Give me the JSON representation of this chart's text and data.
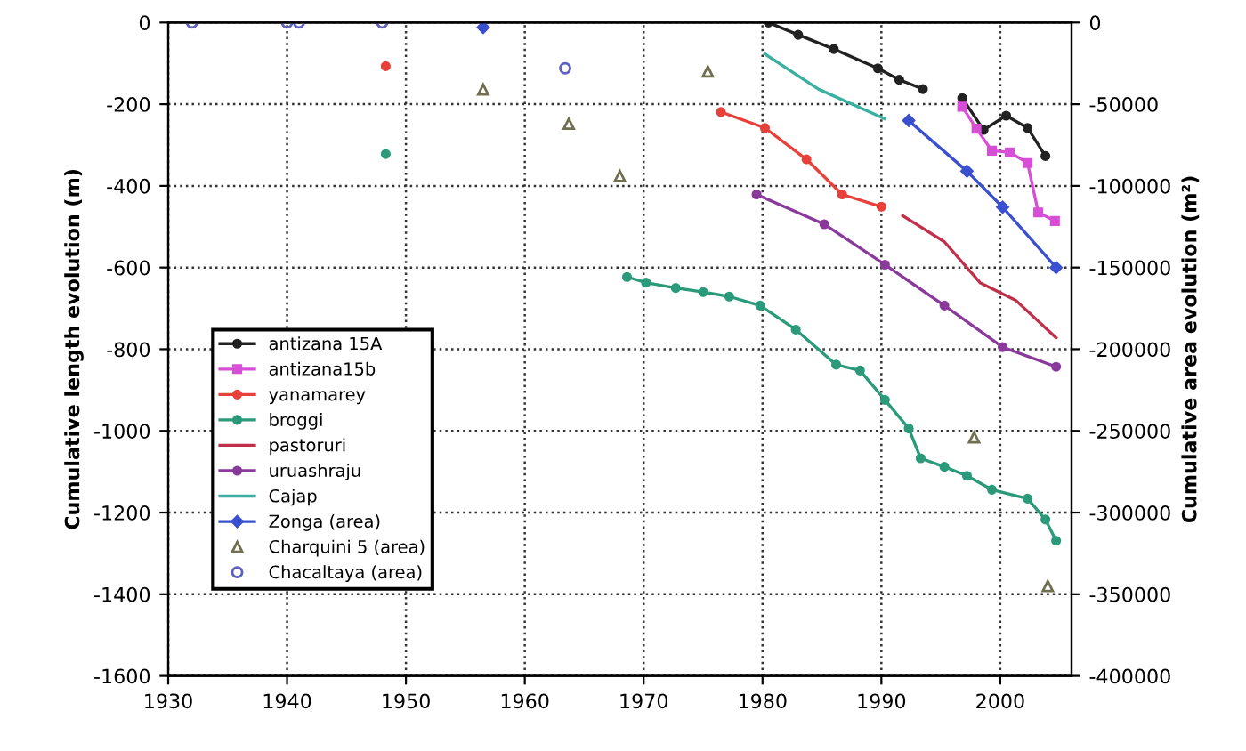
{
  "chart_data": {
    "type": "line",
    "xlabel": null,
    "ylabel": "Cumulative length evolution (m)",
    "y2label": "Cumulative area evolution (m²)",
    "xlim": [
      1930,
      2006
    ],
    "xticks": [
      1930,
      1940,
      1950,
      1960,
      1970,
      1980,
      1990,
      2000
    ],
    "ylim": [
      -1600,
      0
    ],
    "yticks": [
      -1600,
      -1400,
      -1200,
      -1000,
      -800,
      -600,
      -400,
      -200,
      0
    ],
    "y2lim": [
      -400000,
      0
    ],
    "y2ticks": [
      -400000,
      -350000,
      -300000,
      -250000,
      -200000,
      -150000,
      -100000,
      -50000,
      0
    ],
    "grid": true,
    "legend": "bottom left",
    "line_style": "solid",
    "series": [
      {
        "name": "antizana 15A",
        "color": "#222222",
        "marker": "circle",
        "x": [
          1980.5,
          1983,
          1986,
          1989.7,
          1991.5,
          1993.5,
          1995,
          1996.8,
          1998.6,
          2000.5,
          2002.3,
          2003.8
        ],
        "values": [
          0,
          -30,
          -65,
          -112,
          -140,
          -163,
          null,
          -185,
          -263,
          -228,
          -258,
          -327
        ]
      },
      {
        "name": "antizana15b",
        "color": "#d64fd6",
        "marker": "square",
        "x": [
          1996.8,
          1998,
          1999.3,
          2000.8,
          2002.3,
          2003.2,
          2004.6
        ],
        "values": [
          -206,
          -260,
          -314,
          -318,
          -344,
          -465,
          -486
        ]
      },
      {
        "name": "yanamarey",
        "color": "#e8403a",
        "marker": "circle",
        "x": [
          1948.3,
          1960,
          1976.5,
          1980.2,
          1983.7,
          1986.7,
          1990
        ],
        "values": [
          -107,
          null,
          -219,
          -258,
          -335,
          -421,
          -451
        ]
      },
      {
        "name": "broggi",
        "color": "#2a9a7a",
        "marker": "circle",
        "x": [
          1948.3,
          1960,
          1968.6,
          1970.2,
          1972.7,
          1975,
          1977.2,
          1979.8,
          1982.8,
          1986.2,
          1988.2,
          1990.3,
          1992.3,
          1993.3,
          1995.3,
          1997.2,
          1999.3,
          2002.3,
          2003.8,
          2004.7
        ],
        "values": [
          -322,
          null,
          -623,
          -637,
          -650,
          -660,
          -671,
          -693,
          -752,
          -838,
          -852,
          -924,
          -994,
          -1067,
          -1088,
          -1110,
          -1144,
          -1166,
          -1217,
          -1269
        ]
      },
      {
        "name": "pastoruri",
        "color": "#c0304a",
        "marker": "none",
        "x": [
          1991.8,
          1995.3,
          1998.3,
          2001.3,
          2004.7
        ],
        "values": [
          -473,
          -537,
          -637,
          -680,
          -772
        ]
      },
      {
        "name": "uruashraju",
        "color": "#8a3a9a",
        "marker": "circle",
        "x": [
          1979.5,
          1985.2,
          1990.3,
          1995.3,
          2000.2,
          2004.7
        ],
        "values": [
          -421,
          -494,
          -593,
          -693,
          -795,
          -843
        ]
      },
      {
        "name": "Cajap",
        "color": "#3ab0a0",
        "marker": "none",
        "x": [
          1980.2,
          1984.7,
          1990.3
        ],
        "values": [
          -77,
          -163,
          -236
        ]
      },
      {
        "name": "Zonga (area)",
        "color": "#3a50d0",
        "marker": "diamond",
        "axis": "y2",
        "x": [
          1956.5,
          1970,
          1992.3,
          1997.2,
          2000.2,
          2004.7
        ],
        "values": [
          -3000,
          null,
          -60000,
          -91000,
          -113000,
          -150000
        ]
      },
      {
        "name": "Charquini 5 (area)",
        "color": "#707050",
        "type": "scatter",
        "marker": "triangle",
        "axis": "y2",
        "x": [
          1956.5,
          1963.7,
          1968,
          1975.4,
          1997.8,
          2004
        ],
        "values": [
          -41000,
          -62000,
          -94000,
          -30000,
          -254000,
          -345000
        ]
      },
      {
        "name": "Chacaltaya (area)",
        "color": "#6060c0",
        "type": "scatter",
        "marker": "circle",
        "axis": "y2",
        "x": [
          1932,
          1940,
          1941,
          1948,
          1963.4
        ],
        "values": [
          0,
          0,
          0,
          0,
          -28000
        ]
      }
    ]
  }
}
